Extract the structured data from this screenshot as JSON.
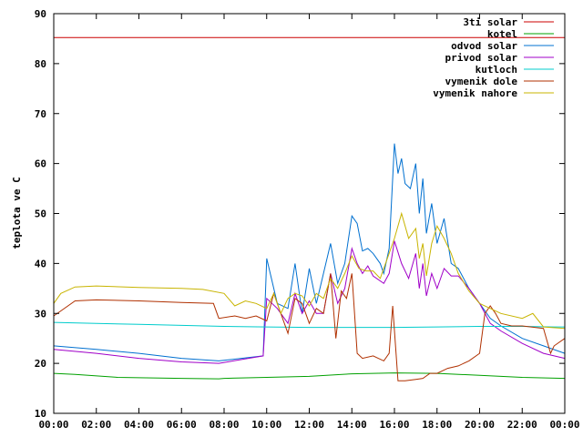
{
  "chart_data": {
    "type": "line",
    "ylabel": "teplota ve C",
    "ylim": [
      10,
      90
    ],
    "yticks": [
      "10",
      "20",
      "30",
      "40",
      "50",
      "60",
      "70",
      "80",
      "90"
    ],
    "xlim": [
      "00:00",
      "24:00"
    ],
    "xtick_labels": [
      "00:00",
      "02:00",
      "04:00",
      "06:00",
      "08:00",
      "10:00",
      "12:00",
      "14:00",
      "16:00",
      "18:00",
      "20:00",
      "22:00",
      "00:00"
    ],
    "legend_position": "top-right",
    "grid": false,
    "series": [
      {
        "name": "3ti solar",
        "color": "#cc0000",
        "points": [
          [
            "00:00",
            85.2
          ],
          [
            "24:00",
            85.2
          ]
        ]
      },
      {
        "name": "kotel",
        "color": "#00a000",
        "points": [
          [
            "00:00",
            18.0
          ],
          [
            "01:00",
            17.8
          ],
          [
            "03:00",
            17.2
          ],
          [
            "06:00",
            17.0
          ],
          [
            "07:45",
            16.9
          ],
          [
            "08:00",
            17.0
          ],
          [
            "10:00",
            17.2
          ],
          [
            "12:00",
            17.4
          ],
          [
            "14:00",
            17.9
          ],
          [
            "16:00",
            18.1
          ],
          [
            "18:00",
            18.0
          ],
          [
            "20:00",
            17.6
          ],
          [
            "22:00",
            17.2
          ],
          [
            "24:00",
            17.0
          ]
        ]
      },
      {
        "name": "odvod solar",
        "color": "#0070d0",
        "points": [
          [
            "00:00",
            23.5
          ],
          [
            "02:00",
            22.8
          ],
          [
            "04:00",
            22.0
          ],
          [
            "06:00",
            21.0
          ],
          [
            "07:45",
            20.5
          ],
          [
            "09:50",
            21.5
          ],
          [
            "10:00",
            41.0
          ],
          [
            "10:30",
            32.0
          ],
          [
            "11:00",
            31.0
          ],
          [
            "11:20",
            40.0
          ],
          [
            "11:40",
            30.0
          ],
          [
            "12:00",
            39.0
          ],
          [
            "12:20",
            32.0
          ],
          [
            "12:40",
            38.0
          ],
          [
            "13:00",
            44.0
          ],
          [
            "13:20",
            36.0
          ],
          [
            "13:40",
            40.0
          ],
          [
            "14:00",
            49.5
          ],
          [
            "14:15",
            48.0
          ],
          [
            "14:30",
            42.5
          ],
          [
            "14:45",
            43.0
          ],
          [
            "15:00",
            42.0
          ],
          [
            "15:20",
            40.0
          ],
          [
            "15:30",
            38.0
          ],
          [
            "15:45",
            43.0
          ],
          [
            "16:00",
            64.0
          ],
          [
            "16:10",
            58.0
          ],
          [
            "16:20",
            61.0
          ],
          [
            "16:30",
            56.0
          ],
          [
            "16:45",
            55.0
          ],
          [
            "17:00",
            60.0
          ],
          [
            "17:10",
            50.0
          ],
          [
            "17:20",
            57.0
          ],
          [
            "17:30",
            46.0
          ],
          [
            "17:45",
            52.0
          ],
          [
            "18:00",
            44.0
          ],
          [
            "18:20",
            49.0
          ],
          [
            "18:40",
            40.0
          ],
          [
            "19:00",
            39.0
          ],
          [
            "19:30",
            35.0
          ],
          [
            "20:00",
            32.0
          ],
          [
            "20:30",
            29.0
          ],
          [
            "21:00",
            27.5
          ],
          [
            "22:00",
            25.0
          ],
          [
            "23:00",
            23.5
          ],
          [
            "24:00",
            22.0
          ]
        ]
      },
      {
        "name": "privod solar",
        "color": "#a000c8",
        "points": [
          [
            "00:00",
            22.8
          ],
          [
            "02:00",
            22.0
          ],
          [
            "04:00",
            21.0
          ],
          [
            "06:00",
            20.3
          ],
          [
            "07:45",
            20.0
          ],
          [
            "09:50",
            21.5
          ],
          [
            "10:00",
            33.0
          ],
          [
            "10:30",
            31.0
          ],
          [
            "11:00",
            28.0
          ],
          [
            "11:20",
            34.0
          ],
          [
            "11:40",
            30.0
          ],
          [
            "12:00",
            32.5
          ],
          [
            "12:20",
            30.0
          ],
          [
            "12:40",
            30.0
          ],
          [
            "13:00",
            38.0
          ],
          [
            "13:20",
            32.0
          ],
          [
            "13:40",
            35.0
          ],
          [
            "14:00",
            43.0
          ],
          [
            "14:15",
            40.0
          ],
          [
            "14:30",
            38.0
          ],
          [
            "14:45",
            39.5
          ],
          [
            "15:00",
            37.5
          ],
          [
            "15:30",
            36.0
          ],
          [
            "15:45",
            38.0
          ],
          [
            "16:00",
            44.5
          ],
          [
            "16:20",
            40.0
          ],
          [
            "16:40",
            37.0
          ],
          [
            "17:00",
            42.0
          ],
          [
            "17:10",
            35.0
          ],
          [
            "17:20",
            40.0
          ],
          [
            "17:30",
            33.5
          ],
          [
            "17:45",
            38.0
          ],
          [
            "18:00",
            35.0
          ],
          [
            "18:20",
            39.0
          ],
          [
            "18:40",
            37.5
          ],
          [
            "19:00",
            37.5
          ],
          [
            "19:30",
            35.0
          ],
          [
            "20:00",
            32.0
          ],
          [
            "20:30",
            28.0
          ],
          [
            "21:00",
            26.5
          ],
          [
            "22:00",
            24.0
          ],
          [
            "23:00",
            22.0
          ],
          [
            "24:00",
            21.0
          ]
        ]
      },
      {
        "name": "kutloch",
        "color": "#00cccc",
        "points": [
          [
            "00:00",
            28.2
          ],
          [
            "02:00",
            28.0
          ],
          [
            "04:00",
            27.8
          ],
          [
            "06:00",
            27.6
          ],
          [
            "08:00",
            27.4
          ],
          [
            "10:00",
            27.3
          ],
          [
            "12:00",
            27.2
          ],
          [
            "14:00",
            27.2
          ],
          [
            "16:00",
            27.2
          ],
          [
            "18:00",
            27.3
          ],
          [
            "20:00",
            27.4
          ],
          [
            "22:00",
            27.4
          ],
          [
            "23:30",
            27.3
          ],
          [
            "24:00",
            27.3
          ]
        ]
      },
      {
        "name": "vymenik dole",
        "color": "#b03000",
        "points": [
          [
            "00:00",
            29.5
          ],
          [
            "00:20",
            30.5
          ],
          [
            "01:00",
            32.5
          ],
          [
            "02:00",
            32.7
          ],
          [
            "04:00",
            32.5
          ],
          [
            "06:00",
            32.2
          ],
          [
            "07:30",
            32.0
          ],
          [
            "07:45",
            29.0
          ],
          [
            "08:30",
            29.5
          ],
          [
            "09:00",
            29.0
          ],
          [
            "09:30",
            29.5
          ],
          [
            "10:00",
            28.5
          ],
          [
            "10:20",
            34.0
          ],
          [
            "10:40",
            30.0
          ],
          [
            "11:00",
            26.0
          ],
          [
            "11:20",
            33.0
          ],
          [
            "11:40",
            32.0
          ],
          [
            "12:00",
            28.0
          ],
          [
            "12:20",
            31.0
          ],
          [
            "12:40",
            30.0
          ],
          [
            "13:00",
            38.0
          ],
          [
            "13:15",
            25.0
          ],
          [
            "13:30",
            34.5
          ],
          [
            "13:45",
            33.0
          ],
          [
            "14:00",
            38.0
          ],
          [
            "14:15",
            22.0
          ],
          [
            "14:30",
            21.0
          ],
          [
            "15:00",
            21.5
          ],
          [
            "15:30",
            20.5
          ],
          [
            "15:45",
            22.0
          ],
          [
            "15:55",
            31.5
          ],
          [
            "16:10",
            16.5
          ],
          [
            "16:30",
            16.5
          ],
          [
            "17:00",
            16.8
          ],
          [
            "17:20",
            17.0
          ],
          [
            "17:40",
            18.0
          ],
          [
            "18:00",
            18.0
          ],
          [
            "18:30",
            19.0
          ],
          [
            "19:00",
            19.5
          ],
          [
            "19:30",
            20.5
          ],
          [
            "20:00",
            22.0
          ],
          [
            "20:15",
            30.0
          ],
          [
            "20:30",
            31.5
          ],
          [
            "20:45",
            30.0
          ],
          [
            "21:00",
            28.0
          ],
          [
            "21:30",
            27.5
          ],
          [
            "22:00",
            27.5
          ],
          [
            "23:00",
            27.0
          ],
          [
            "23:20",
            22.0
          ],
          [
            "23:30",
            23.5
          ],
          [
            "24:00",
            25.0
          ]
        ]
      },
      {
        "name": "vymenik nahore",
        "color": "#c8b400",
        "points": [
          [
            "00:00",
            32.0
          ],
          [
            "00:20",
            34.0
          ],
          [
            "01:00",
            35.3
          ],
          [
            "02:00",
            35.5
          ],
          [
            "04:00",
            35.2
          ],
          [
            "06:00",
            35.0
          ],
          [
            "07:00",
            34.8
          ],
          [
            "08:00",
            34.0
          ],
          [
            "08:30",
            31.5
          ],
          [
            "09:00",
            32.5
          ],
          [
            "09:30",
            32.0
          ],
          [
            "10:00",
            31.0
          ],
          [
            "10:20",
            34.0
          ],
          [
            "10:40",
            30.0
          ],
          [
            "11:00",
            33.0
          ],
          [
            "11:20",
            34.0
          ],
          [
            "11:40",
            33.5
          ],
          [
            "12:00",
            31.5
          ],
          [
            "12:20",
            34.0
          ],
          [
            "12:40",
            33.0
          ],
          [
            "13:00",
            37.0
          ],
          [
            "13:20",
            35.0
          ],
          [
            "13:40",
            38.0
          ],
          [
            "14:00",
            41.5
          ],
          [
            "14:20",
            39.0
          ],
          [
            "14:40",
            38.5
          ],
          [
            "15:00",
            38.5
          ],
          [
            "15:20",
            37.0
          ],
          [
            "15:40",
            41.0
          ],
          [
            "16:00",
            45.0
          ],
          [
            "16:20",
            50.0
          ],
          [
            "16:40",
            45.0
          ],
          [
            "17:00",
            47.0
          ],
          [
            "17:10",
            41.0
          ],
          [
            "17:20",
            44.0
          ],
          [
            "17:30",
            37.5
          ],
          [
            "17:45",
            44.0
          ],
          [
            "18:00",
            47.5
          ],
          [
            "18:20",
            45.0
          ],
          [
            "18:40",
            42.0
          ],
          [
            "19:00",
            38.0
          ],
          [
            "19:30",
            34.5
          ],
          [
            "20:00",
            32.0
          ],
          [
            "20:30",
            31.0
          ],
          [
            "21:00",
            30.0
          ],
          [
            "22:00",
            29.0
          ],
          [
            "22:30",
            30.0
          ],
          [
            "23:00",
            27.3
          ],
          [
            "24:00",
            27.0
          ]
        ]
      }
    ]
  }
}
